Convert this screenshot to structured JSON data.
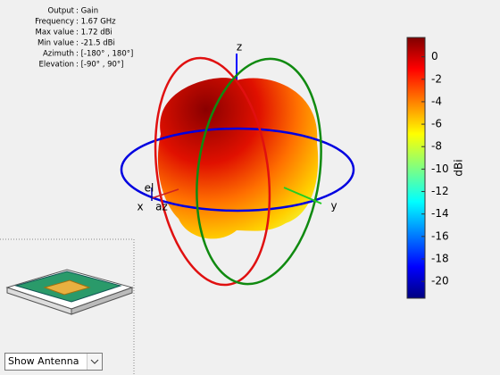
{
  "info": {
    "rows": [
      [
        "Output",
        ": Gain"
      ],
      [
        "Frequency",
        ": 1.67 GHz"
      ],
      [
        "Max value",
        ": 1.72 dBi"
      ],
      [
        "Min value",
        ": -21.5 dBi"
      ],
      [
        "Azimuth",
        ": [-180° , 180°]"
      ],
      [
        "Elevation",
        ": [-90° , 90°]"
      ]
    ]
  },
  "axes": {
    "x": "x",
    "y": "y",
    "z": "z",
    "el": "el",
    "az": "az"
  },
  "colorbar": {
    "label": "dBi",
    "lim": [
      -21.5,
      1.72
    ],
    "ticks": [
      0,
      -2,
      -4,
      -6,
      -8,
      -10,
      -12,
      -14,
      -16,
      -18,
      -20
    ]
  },
  "control": {
    "dropdown": "Show Antenna"
  }
}
